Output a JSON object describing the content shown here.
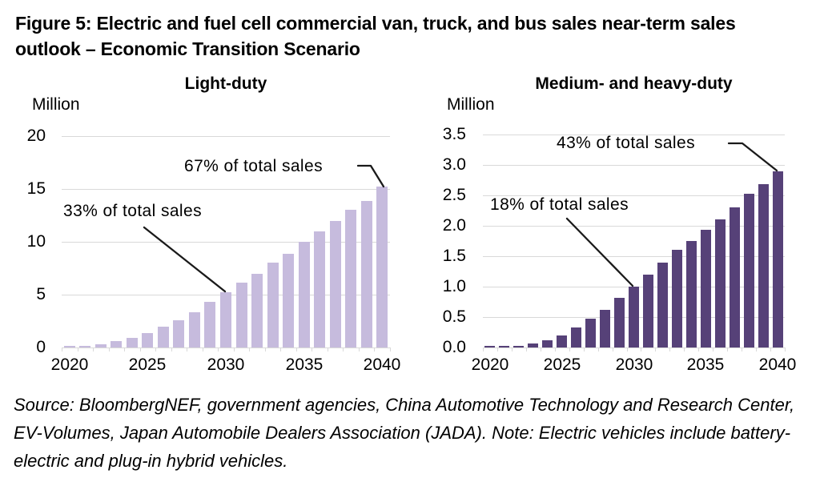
{
  "figure_title": "Figure 5: Electric and fuel cell commercial van, truck, and bus sales near-term sales outlook – Economic Transition Scenario",
  "source_note": "Source: BloombergNEF, government agencies, China Automotive Technology and Research Center, EV-Volumes, Japan Automobile Dealers Association (JADA). Note: Electric vehicles include battery-electric and plug-in hybrid vehicles.",
  "colors": {
    "light_duty_bar": "#c6bbdd",
    "medium_heavy_duty_bar": "#564178",
    "gridline": "#d9d9d9",
    "leader_line": "#1a1a1a",
    "text": "#000000"
  },
  "chart_data": [
    {
      "type": "bar",
      "title": "Light-duty",
      "unit_label": "Million",
      "x": [
        2020,
        2021,
        2022,
        2023,
        2024,
        2025,
        2026,
        2027,
        2028,
        2029,
        2030,
        2031,
        2032,
        2033,
        2034,
        2035,
        2036,
        2037,
        2038,
        2039,
        2040
      ],
      "values": [
        0.1,
        0.1,
        0.3,
        0.6,
        0.9,
        1.4,
        2.0,
        2.6,
        3.3,
        4.3,
        5.2,
        6.1,
        7.0,
        8.0,
        8.9,
        10.0,
        11.0,
        12.0,
        13.0,
        13.9,
        15.2
      ],
      "ylim": [
        0,
        20
      ],
      "yticks": [
        0,
        5,
        10,
        15,
        20
      ],
      "ytick_labels": [
        "0",
        "5",
        "10",
        "15",
        "20"
      ],
      "xticks": [
        2020,
        2025,
        2030,
        2035,
        2040
      ],
      "xtick_labels": [
        "2020",
        "2025",
        "2030",
        "2035",
        "2040"
      ],
      "bar_color": "#c6bbdd",
      "grid": true,
      "legend": "none",
      "annotations": [
        {
          "text": "67% of total sales",
          "target_year": 2040,
          "target_value": 15.2
        },
        {
          "text": "33% of total sales",
          "target_year": 2030,
          "target_value": 5.2
        }
      ]
    },
    {
      "type": "bar",
      "title": "Medium- and heavy-duty",
      "unit_label": "Million",
      "x": [
        2020,
        2021,
        2022,
        2023,
        2024,
        2025,
        2026,
        2027,
        2028,
        2029,
        2030,
        2031,
        2032,
        2033,
        2034,
        2035,
        2036,
        2037,
        2038,
        2039,
        2040
      ],
      "values": [
        0.02,
        0.02,
        0.03,
        0.06,
        0.12,
        0.2,
        0.33,
        0.47,
        0.62,
        0.82,
        1.0,
        1.2,
        1.4,
        1.6,
        1.75,
        1.93,
        2.1,
        2.3,
        2.52,
        2.68,
        2.9
      ],
      "ylim": [
        0,
        3.5
      ],
      "yticks": [
        0,
        0.5,
        1.0,
        1.5,
        2.0,
        2.5,
        3.0,
        3.5
      ],
      "ytick_labels": [
        "0.0",
        "0.5",
        "1.0",
        "1.5",
        "2.0",
        "2.5",
        "3.0",
        "3.5"
      ],
      "xticks": [
        2020,
        2025,
        2030,
        2035,
        2040
      ],
      "xtick_labels": [
        "2020",
        "2025",
        "2030",
        "2035",
        "2040"
      ],
      "bar_color": "#564178",
      "grid": true,
      "legend": "none",
      "annotations": [
        {
          "text": "43% of total sales",
          "target_year": 2040,
          "target_value": 2.9
        },
        {
          "text": "18% of total sales",
          "target_year": 2030,
          "target_value": 1.0
        }
      ]
    }
  ]
}
